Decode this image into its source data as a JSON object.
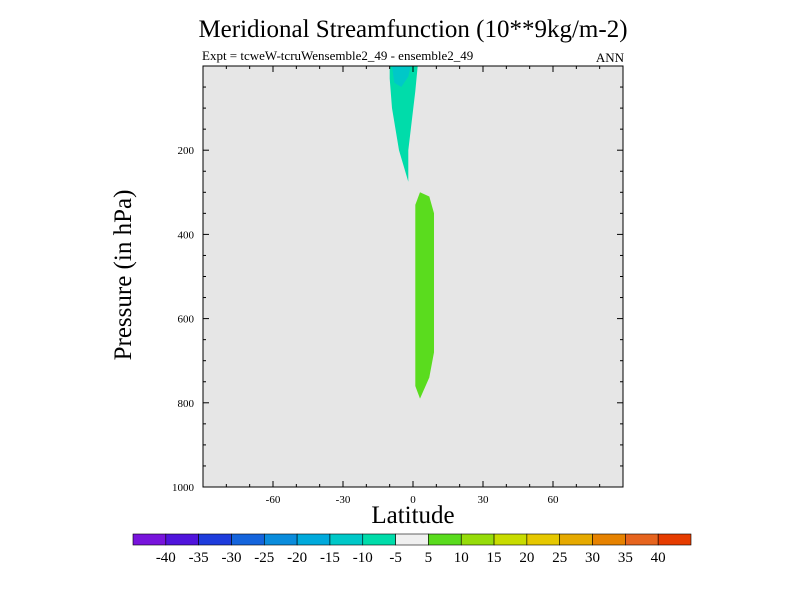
{
  "chart_data": {
    "type": "contour",
    "title": "Meridional Streamfunction (10**9kg/m-2)",
    "subtitle_left": "Expt = tcweW-tcruW",
    "subtitle_center": "ensemble2_49 - ensemble2_49",
    "subtitle_right": "ANN",
    "xlabel": "Latitude",
    "ylabel": "Pressure (in hPa)",
    "xlim": [
      -90,
      90
    ],
    "ylim": [
      1000,
      0
    ],
    "x_ticks": [
      -60,
      -30,
      0,
      30,
      60
    ],
    "x_tick_labels": [
      "-60",
      "-30",
      "0",
      "30",
      "60"
    ],
    "y_ticks": [
      200,
      400,
      600,
      800,
      1000
    ],
    "y_tick_labels": [
      "200",
      "400",
      "600",
      "800",
      "1000"
    ],
    "background_color": "#e6e6e6",
    "regions": [
      {
        "name": "negative-cell-upper",
        "level_range": [
          -10,
          -5
        ],
        "color": "#00dcaa",
        "outline": [
          [
            -10,
            0
          ],
          [
            2,
            0
          ],
          [
            1,
            60
          ],
          [
            -2,
            200
          ],
          [
            -2,
            275
          ],
          [
            -6,
            200
          ],
          [
            -9,
            100
          ],
          [
            -10,
            30
          ]
        ]
      },
      {
        "name": "negative-cell-upper-core",
        "level_range": [
          -15,
          -10
        ],
        "color": "#00c8c8",
        "outline": [
          [
            -9,
            0
          ],
          [
            -1,
            0
          ],
          [
            -2,
            25
          ],
          [
            -5,
            50
          ],
          [
            -8,
            40
          ]
        ]
      },
      {
        "name": "positive-cell-mid",
        "level_range": [
          5,
          10
        ],
        "color": "#5adc1e",
        "outline": [
          [
            3,
            300
          ],
          [
            7,
            310
          ],
          [
            9,
            350
          ],
          [
            9,
            680
          ],
          [
            7,
            740
          ],
          [
            3,
            790
          ],
          [
            1,
            760
          ],
          [
            1,
            330
          ]
        ]
      }
    ],
    "colorbar": {
      "labels": [
        "-40",
        "-35",
        "-30",
        "-25",
        "-20",
        "-15",
        "-10",
        "-5",
        "5",
        "10",
        "15",
        "20",
        "25",
        "30",
        "35",
        "40"
      ],
      "colors": [
        "#7814dc",
        "#5014dc",
        "#1e3cdc",
        "#1464dc",
        "#0a8cdc",
        "#00aadc",
        "#00c8c8",
        "#00dcaa",
        "#f0f0f0",
        "#5adc1e",
        "#96dc0a",
        "#c8dc00",
        "#e6c800",
        "#e6aa00",
        "#e68200",
        "#e6641e",
        "#e63c00"
      ]
    }
  }
}
